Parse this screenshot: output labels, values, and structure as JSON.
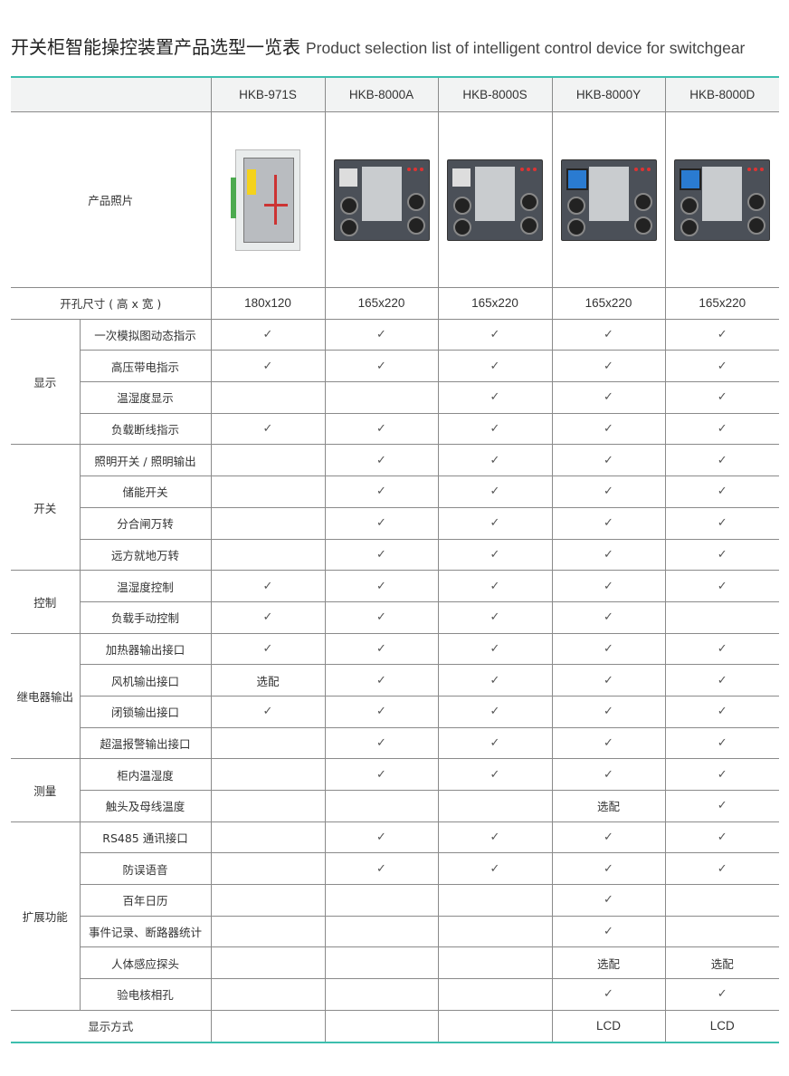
{
  "title": {
    "cn": "开关柜智能操控装置产品选型一览表",
    "en": "Product selection list of intelligent control device for switchgear"
  },
  "colors": {
    "accent": "#3dbfae",
    "header_bg": "#f2f3f3",
    "border": "#8a8a8a"
  },
  "products": [
    "HKB-971S",
    "HKB-8000A",
    "HKB-8000S",
    "HKB-8000Y",
    "HKB-8000D"
  ],
  "photo_label": "产品照片",
  "size_row": {
    "label": "开孔尺寸 ( 高 x 宽 )",
    "values": [
      "180x120",
      "165x220",
      "165x220",
      "165x220",
      "165x220"
    ]
  },
  "groups": [
    {
      "name": "显示",
      "rows": [
        {
          "feature": "一次模拟图动态指示",
          "cells": [
            "✓",
            "✓",
            "✓",
            "✓",
            "✓"
          ]
        },
        {
          "feature": "高压带电指示",
          "cells": [
            "✓",
            "✓",
            "✓",
            "✓",
            "✓"
          ]
        },
        {
          "feature": "温湿度显示",
          "cells": [
            "",
            "",
            "✓",
            "✓",
            "✓"
          ]
        },
        {
          "feature": "负载断线指示",
          "cells": [
            "✓",
            "✓",
            "✓",
            "✓",
            "✓"
          ]
        }
      ]
    },
    {
      "name": "开关",
      "rows": [
        {
          "feature": "照明开关 / 照明输出",
          "cells": [
            "",
            "✓",
            "✓",
            "✓",
            "✓"
          ]
        },
        {
          "feature": "储能开关",
          "cells": [
            "",
            "✓",
            "✓",
            "✓",
            "✓"
          ]
        },
        {
          "feature": "分合闸万转",
          "cells": [
            "",
            "✓",
            "✓",
            "✓",
            "✓"
          ]
        },
        {
          "feature": "远方就地万转",
          "cells": [
            "",
            "✓",
            "✓",
            "✓",
            "✓"
          ]
        }
      ]
    },
    {
      "name": "控制",
      "rows": [
        {
          "feature": "温湿度控制",
          "cells": [
            "✓",
            "✓",
            "✓",
            "✓",
            "✓"
          ]
        },
        {
          "feature": "负载手动控制",
          "cells": [
            "✓",
            "✓",
            "✓",
            "✓",
            ""
          ]
        }
      ]
    },
    {
      "name": "继电器输出",
      "rows": [
        {
          "feature": "加热器输出接口",
          "cells": [
            "✓",
            "✓",
            "✓",
            "✓",
            "✓"
          ]
        },
        {
          "feature": "风机输出接口",
          "cells": [
            "选配",
            "✓",
            "✓",
            "✓",
            "✓"
          ]
        },
        {
          "feature": "闭锁输出接口",
          "cells": [
            "✓",
            "✓",
            "✓",
            "✓",
            "✓"
          ]
        },
        {
          "feature": "超温报警输出接口",
          "cells": [
            "",
            "✓",
            "✓",
            "✓",
            "✓"
          ]
        }
      ]
    },
    {
      "name": "测量",
      "rows": [
        {
          "feature": "柜内温湿度",
          "cells": [
            "",
            "✓",
            "✓",
            "✓",
            "✓"
          ]
        },
        {
          "feature": "触头及母线温度",
          "cells": [
            "",
            "",
            "",
            "选配",
            "✓"
          ]
        }
      ]
    },
    {
      "name": "扩展功能",
      "rows": [
        {
          "feature": "RS485 通讯接口",
          "cells": [
            "",
            "✓",
            "✓",
            "✓",
            "✓"
          ]
        },
        {
          "feature": "防误语音",
          "cells": [
            "",
            "✓",
            "✓",
            "✓",
            "✓"
          ]
        },
        {
          "feature": "百年日历",
          "cells": [
            "",
            "",
            "",
            "✓",
            ""
          ]
        },
        {
          "feature": "事件记录、断路器统计",
          "cells": [
            "",
            "",
            "",
            "✓",
            ""
          ]
        },
        {
          "feature": "人体感应探头",
          "cells": [
            "",
            "",
            "",
            "选配",
            "选配"
          ]
        },
        {
          "feature": "验电核相孔",
          "cells": [
            "",
            "",
            "",
            "✓",
            "✓"
          ]
        }
      ]
    }
  ],
  "display_row": {
    "label": "显示方式",
    "values": [
      "",
      "",
      "",
      "LCD",
      "LCD"
    ]
  }
}
